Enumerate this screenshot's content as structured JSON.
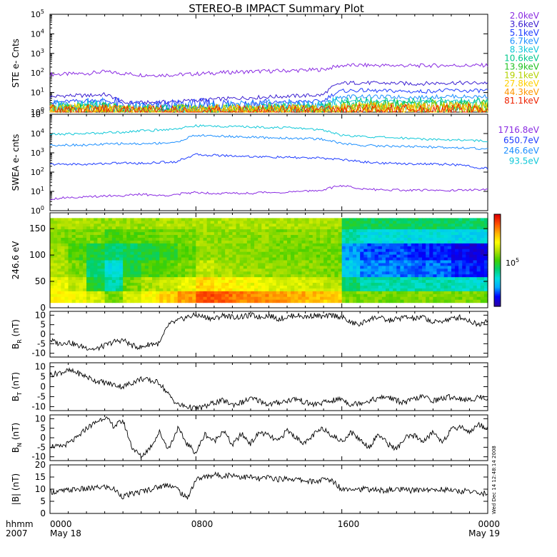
{
  "title": "STEREO-B IMPACT Summary Plot",
  "side_stamp": "Wed Dec 14 12:48:14 2008",
  "footer": {
    "col_label_top": "hhmm",
    "col_label_bottom": "2007",
    "ticks": [
      {
        "top": "0000",
        "bottom": "May 18"
      },
      {
        "top": "0800",
        "bottom": ""
      },
      {
        "top": "1600",
        "bottom": ""
      },
      {
        "top": "0000",
        "bottom": "May 19"
      }
    ]
  },
  "chart_data": [
    {
      "type": "line",
      "ylabel": "STE e- Cnts",
      "yscale": "log",
      "ylim": [
        1,
        100000
      ],
      "ytick_labels": [
        "10^0",
        "10^1",
        "10^2",
        "10^3",
        "10^4",
        "10^5"
      ],
      "x_hours": [
        0,
        1,
        2,
        3,
        4,
        5,
        6,
        7,
        8,
        9,
        10,
        11,
        12,
        13,
        14,
        15,
        16,
        17,
        18,
        19,
        20,
        21,
        22,
        23,
        24
      ],
      "legend": [
        {
          "label": "2.0keV",
          "color": "#8a2be2"
        },
        {
          "label": "3.6keV",
          "color": "#3b1fd1"
        },
        {
          "label": "5.1keV",
          "color": "#1e3cff"
        },
        {
          "label": "6.7keV",
          "color": "#1e90ff"
        },
        {
          "label": "8.3keV",
          "color": "#10c8d8"
        },
        {
          "label": "10.6keV",
          "color": "#00c88c"
        },
        {
          "label": "13.9keV",
          "color": "#22c322"
        },
        {
          "label": "19.1keV",
          "color": "#b4d200"
        },
        {
          "label": "27.8keV",
          "color": "#ffd000"
        },
        {
          "label": "44.3keV",
          "color": "#ff9600"
        },
        {
          "label": "81.1keV",
          "color": "#ee2200"
        }
      ],
      "series": [
        {
          "name": "2.0keV",
          "values": [
            85,
            88,
            95,
            115,
            95,
            80,
            78,
            82,
            90,
            100,
            110,
            118,
            125,
            130,
            140,
            150,
            240,
            250,
            245,
            240,
            235,
            240,
            245,
            240,
            250
          ]
        },
        {
          "name": "3.6keV",
          "values": [
            6,
            7,
            7,
            8,
            3,
            3,
            3.2,
            3.5,
            4,
            4.5,
            5,
            5.5,
            6,
            6.5,
            7,
            7.5,
            30,
            32,
            30,
            30,
            28,
            30,
            32,
            30,
            32
          ]
        },
        {
          "name": "5.1keV",
          "values": [
            3,
            3.5,
            3.8,
            4,
            2,
            1.8,
            1.9,
            2,
            2.2,
            2.4,
            2.6,
            2.8,
            3,
            3.2,
            3.4,
            3.6,
            12,
            13,
            12,
            12,
            11,
            12,
            13,
            12,
            13
          ]
        },
        {
          "name": "6.7keV",
          "values": [
            2,
            2.2,
            2.4,
            2.6,
            1.5,
            1.4,
            1.4,
            1.5,
            1.6,
            1.7,
            1.8,
            1.9,
            2,
            2.1,
            2.2,
            2.3,
            6,
            6.5,
            6,
            6,
            5.5,
            6,
            6.5,
            6,
            6.5
          ]
        },
        {
          "name": "8.3keV",
          "values": [
            1.6,
            1.7,
            1.8,
            1.9,
            1.3,
            1.2,
            1.2,
            1.3,
            1.3,
            1.4,
            1.4,
            1.5,
            1.5,
            1.6,
            1.6,
            1.7,
            3.5,
            3.7,
            3.5,
            3.5,
            3.3,
            3.5,
            3.7,
            3.5,
            3.7
          ]
        },
        {
          "name": "10.6keV",
          "values": [
            1.4,
            1.4,
            1.5,
            1.5,
            1.2,
            1.1,
            1.1,
            1.2,
            1.2,
            1.2,
            1.3,
            1.3,
            1.3,
            1.4,
            1.4,
            1.4,
            2.5,
            2.6,
            2.5,
            2.5,
            2.4,
            2.5,
            2.6,
            2.5,
            2.6
          ]
        },
        {
          "name": "13.9keV",
          "values": [
            1.3,
            1.3,
            1.3,
            1.4,
            1.1,
            1.1,
            1.1,
            1.1,
            1.1,
            1.2,
            1.2,
            1.2,
            1.2,
            1.3,
            1.3,
            1.3,
            2,
            2.1,
            2,
            2,
            1.9,
            2,
            2.1,
            2,
            2.1
          ]
        },
        {
          "name": "19.1keV",
          "values": [
            1.2,
            1.2,
            1.2,
            1.3,
            1.1,
            1,
            1,
            1.1,
            1.1,
            1.1,
            1.1,
            1.1,
            1.2,
            1.2,
            1.2,
            1.2,
            1.7,
            1.8,
            1.7,
            1.7,
            1.6,
            1.7,
            1.8,
            1.7,
            1.8
          ]
        },
        {
          "name": "27.8keV",
          "values": [
            1.2,
            1.2,
            1.2,
            1.2,
            1.1,
            1,
            1,
            1,
            1.1,
            1.1,
            1.1,
            1.1,
            1.1,
            1.1,
            1.2,
            1.2,
            1.5,
            1.5,
            1.5,
            1.5,
            1.4,
            1.5,
            1.5,
            1.5,
            1.5
          ]
        },
        {
          "name": "44.3keV",
          "values": [
            1.1,
            1.1,
            1.1,
            1.2,
            1,
            1,
            1,
            1,
            1,
            1.1,
            1.1,
            1.1,
            1.1,
            1.1,
            1.1,
            1.1,
            1.3,
            1.4,
            1.3,
            1.3,
            1.3,
            1.3,
            1.4,
            1.3,
            1.4
          ]
        },
        {
          "name": "81.1keV",
          "values": [
            1.1,
            1.1,
            1.1,
            1.1,
            1,
            1,
            1,
            1,
            1,
            1,
            1,
            1,
            1.1,
            1.1,
            1.1,
            1.1,
            1.2,
            1.3,
            1.2,
            1.2,
            1.2,
            1.2,
            1.3,
            1.2,
            1.3
          ]
        }
      ]
    },
    {
      "type": "line",
      "ylabel": "SWEA e- cnts",
      "yscale": "log",
      "ylim": [
        1,
        100000
      ],
      "ytick_labels": [
        "10^0",
        "10^1",
        "10^2",
        "10^3",
        "10^4",
        "10^5"
      ],
      "x_hours": [
        0,
        1,
        2,
        3,
        4,
        5,
        6,
        7,
        8,
        9,
        10,
        11,
        12,
        13,
        14,
        15,
        16,
        17,
        18,
        19,
        20,
        21,
        22,
        23,
        24
      ],
      "legend": [
        {
          "label": "1716.8eV",
          "color": "#8a2be2"
        },
        {
          "label": "650.7eV",
          "color": "#1e3cff"
        },
        {
          "label": "246.6eV",
          "color": "#1e90ff"
        },
        {
          "label": "93.5eV",
          "color": "#10c8d8"
        }
      ],
      "series": [
        {
          "name": "1716.8eV",
          "values": [
            4,
            5,
            5,
            6,
            6,
            7,
            6,
            7,
            9,
            8,
            8,
            8,
            9,
            9,
            10,
            12,
            20,
            14,
            12,
            12,
            11,
            12,
            11,
            12,
            12
          ]
        },
        {
          "name": "650.7eV",
          "values": [
            250,
            260,
            250,
            280,
            300,
            280,
            320,
            350,
            800,
            750,
            700,
            650,
            600,
            580,
            550,
            520,
            450,
            350,
            300,
            280,
            270,
            260,
            250,
            200,
            150
          ]
        },
        {
          "name": "246.6eV",
          "values": [
            2500,
            2600,
            2500,
            2800,
            3000,
            2900,
            3200,
            3500,
            8000,
            7500,
            7000,
            6500,
            6000,
            5800,
            5500,
            5000,
            3000,
            2500,
            2300,
            2200,
            2100,
            2000,
            1900,
            1800,
            1500
          ]
        },
        {
          "name": "93.5eV",
          "values": [
            9000,
            9500,
            10000,
            11000,
            12000,
            14000,
            15000,
            18000,
            25000,
            24000,
            23000,
            22000,
            21000,
            20000,
            18000,
            15000,
            8000,
            7000,
            6500,
            6000,
            5500,
            5000,
            4800,
            4500,
            4000
          ]
        }
      ]
    },
    {
      "type": "heatmap",
      "ylabel": "246.6 eV",
      "ylim": [
        0,
        180
      ],
      "yticks": [
        0,
        50,
        100,
        150
      ],
      "colorbar_label": "10^5",
      "colorscale": [
        "#2a00a8",
        "#0000ff",
        "#00aaff",
        "#00e0e0",
        "#00d070",
        "#40d000",
        "#b0e000",
        "#ffff00",
        "#ffb000",
        "#ff5000",
        "#e00000"
      ],
      "x_hours": [
        0,
        1,
        2,
        3,
        4,
        5,
        6,
        7,
        8,
        9,
        10,
        11,
        12,
        13,
        14,
        15,
        16,
        17,
        18,
        19,
        20,
        21,
        22,
        23,
        24
      ],
      "y_bins": [
        15,
        45,
        75,
        105,
        135,
        165
      ],
      "values": [
        [
          0.7,
          0.68,
          0.6,
          0.58,
          0.55,
          0.6
        ],
        [
          0.68,
          0.62,
          0.55,
          0.5,
          0.55,
          0.6
        ],
        [
          0.65,
          0.45,
          0.4,
          0.45,
          0.55,
          0.58
        ],
        [
          0.55,
          0.35,
          0.3,
          0.4,
          0.5,
          0.58
        ],
        [
          0.65,
          0.55,
          0.45,
          0.42,
          0.52,
          0.58
        ],
        [
          0.7,
          0.6,
          0.5,
          0.45,
          0.52,
          0.58
        ],
        [
          0.75,
          0.62,
          0.52,
          0.48,
          0.55,
          0.6
        ],
        [
          0.82,
          0.68,
          0.55,
          0.52,
          0.55,
          0.6
        ],
        [
          0.9,
          0.75,
          0.62,
          0.58,
          0.58,
          0.6
        ],
        [
          0.88,
          0.72,
          0.6,
          0.57,
          0.57,
          0.6
        ],
        [
          0.85,
          0.7,
          0.58,
          0.56,
          0.57,
          0.6
        ],
        [
          0.84,
          0.68,
          0.58,
          0.56,
          0.57,
          0.6
        ],
        [
          0.82,
          0.66,
          0.57,
          0.55,
          0.56,
          0.6
        ],
        [
          0.8,
          0.65,
          0.56,
          0.55,
          0.56,
          0.6
        ],
        [
          0.78,
          0.64,
          0.56,
          0.54,
          0.56,
          0.6
        ],
        [
          0.76,
          0.62,
          0.55,
          0.54,
          0.56,
          0.6
        ],
        [
          0.55,
          0.4,
          0.25,
          0.2,
          0.35,
          0.45
        ],
        [
          0.55,
          0.35,
          0.18,
          0.15,
          0.3,
          0.42
        ],
        [
          0.55,
          0.35,
          0.18,
          0.14,
          0.3,
          0.42
        ],
        [
          0.55,
          0.35,
          0.17,
          0.14,
          0.3,
          0.42
        ],
        [
          0.55,
          0.35,
          0.16,
          0.12,
          0.3,
          0.42
        ],
        [
          0.55,
          0.35,
          0.16,
          0.12,
          0.3,
          0.42
        ],
        [
          0.55,
          0.32,
          0.12,
          0.08,
          0.28,
          0.4
        ],
        [
          0.55,
          0.32,
          0.1,
          0.06,
          0.28,
          0.4
        ]
      ]
    },
    {
      "type": "line",
      "ylabel": "BR (nT)",
      "ylim": [
        -12,
        12
      ],
      "yticks": [
        -10,
        -5,
        0,
        5,
        10
      ],
      "x_hours": [
        0,
        0.5,
        1,
        1.5,
        2,
        2.5,
        3,
        3.5,
        4,
        4.5,
        5,
        5.5,
        6,
        6.5,
        7,
        7.5,
        8,
        8.5,
        9,
        9.5,
        10,
        10.5,
        11,
        11.5,
        12,
        12.5,
        13,
        13.5,
        14,
        14.5,
        15,
        15.5,
        16,
        16.5,
        17,
        17.5,
        18,
        18.5,
        19,
        19.5,
        20,
        20.5,
        21,
        21.5,
        22,
        22.5,
        23,
        23.5,
        24
      ],
      "values": [
        -3,
        -5,
        -4,
        -6,
        -7,
        -8,
        -6,
        -4,
        -3,
        -6,
        -7,
        -5,
        -5,
        5,
        7,
        9,
        10,
        9,
        8,
        10,
        9,
        9,
        10,
        9,
        10,
        8,
        9,
        10,
        9,
        10,
        9,
        10,
        9,
        6,
        5,
        8,
        9,
        7,
        8,
        9,
        8,
        9,
        6,
        7,
        8,
        9,
        7,
        5,
        8
      ]
    },
    {
      "type": "line",
      "ylabel": "BT (nT)",
      "ylim": [
        -12,
        12
      ],
      "yticks": [
        -10,
        -5,
        0,
        5,
        10
      ],
      "x_hours": [
        0,
        0.5,
        1,
        1.5,
        2,
        2.5,
        3,
        3.5,
        4,
        4.5,
        5,
        5.5,
        6,
        6.5,
        7,
        7.5,
        8,
        8.5,
        9,
        9.5,
        10,
        10.5,
        11,
        11.5,
        12,
        12.5,
        13,
        13.5,
        14,
        14.5,
        15,
        15.5,
        16,
        16.5,
        17,
        17.5,
        18,
        18.5,
        19,
        19.5,
        20,
        20.5,
        21,
        21.5,
        22,
        22.5,
        23,
        23.5,
        24
      ],
      "values": [
        6,
        7,
        8,
        7,
        5,
        3,
        2,
        1,
        0,
        2,
        4,
        3,
        2,
        -4,
        -9,
        -10,
        -11,
        -10,
        -8,
        -7,
        -9,
        -8,
        -6,
        -7,
        -9,
        -8,
        -7,
        -6,
        -8,
        -9,
        -8,
        -7,
        -6,
        -9,
        -8,
        -7,
        -6,
        -5,
        -7,
        -8,
        -6,
        -5,
        -7,
        -6,
        -5,
        -6,
        -7,
        -5,
        -6
      ]
    },
    {
      "type": "line",
      "ylabel": "BN (nT)",
      "ylim": [
        -12,
        12
      ],
      "yticks": [
        -10,
        -5,
        0,
        5,
        10
      ],
      "x_hours": [
        0,
        0.5,
        1,
        1.5,
        2,
        2.5,
        3,
        3.5,
        4,
        4.5,
        5,
        5.5,
        6,
        6.5,
        7,
        7.5,
        8,
        8.5,
        9,
        9.5,
        10,
        10.5,
        11,
        11.5,
        12,
        12.5,
        13,
        13.5,
        14,
        14.5,
        15,
        15.5,
        16,
        16.5,
        17,
        17.5,
        18,
        18.5,
        19,
        19.5,
        20,
        20.5,
        21,
        21.5,
        22,
        22.5,
        23,
        23.5,
        24
      ],
      "values": [
        -4,
        -5,
        -3,
        0,
        5,
        8,
        11,
        6,
        9,
        -5,
        -10,
        -5,
        3,
        -6,
        5,
        -3,
        -8,
        2,
        -2,
        4,
        -4,
        2,
        -3,
        3,
        1,
        -2,
        4,
        0,
        -3,
        2,
        5,
        1,
        -2,
        3,
        -1,
        -5,
        2,
        -3,
        -6,
        0,
        1,
        -2,
        3,
        -2,
        4,
        6,
        3,
        7,
        5
      ]
    },
    {
      "type": "line",
      "ylabel": "|B| (nT)",
      "ylim": [
        0,
        20
      ],
      "yticks": [
        0,
        5,
        10,
        15,
        20
      ],
      "x_hours": [
        0,
        0.5,
        1,
        1.5,
        2,
        2.5,
        3,
        3.5,
        4,
        4.5,
        5,
        5.5,
        6,
        6.5,
        7,
        7.5,
        8,
        8.5,
        9,
        9.5,
        10,
        10.5,
        11,
        11.5,
        12,
        12.5,
        13,
        13.5,
        14,
        14.5,
        15,
        15.5,
        16,
        16.5,
        17,
        17.5,
        18,
        18.5,
        19,
        19.5,
        20,
        20.5,
        21,
        21.5,
        22,
        22.5,
        23,
        23.5,
        24
      ],
      "values": [
        9,
        9,
        9.5,
        10,
        10,
        10.5,
        11,
        10,
        7,
        8,
        9,
        10,
        11,
        12,
        10,
        6,
        14,
        15,
        16,
        15.5,
        16,
        15,
        15,
        14,
        15,
        14,
        14.5,
        14,
        13.5,
        13,
        14,
        13.5,
        10,
        10.5,
        10,
        10,
        9.5,
        9.5,
        10,
        9.5,
        9.5,
        10,
        9.5,
        10,
        9.5,
        9,
        9.5,
        8,
        8.5
      ]
    }
  ]
}
